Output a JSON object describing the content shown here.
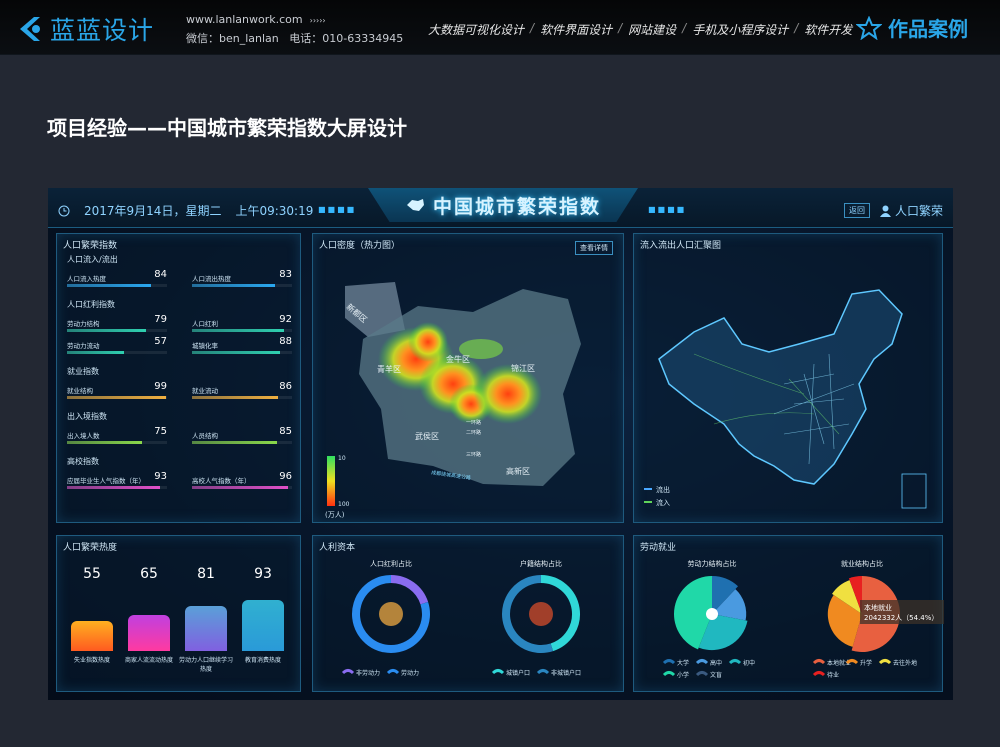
{
  "header": {
    "brand": "蓝蓝设计",
    "website": "www.lanlanwork.com",
    "dots": "›››››",
    "wechat": "微信：ben_lanlan",
    "phone": "电话：010-63334945",
    "nav": [
      "大数据可视化设计",
      "软件界面设计",
      "网站建设",
      "手机及小程序设计",
      "软件开发"
    ],
    "separator": "/",
    "cases": "作品案例"
  },
  "page_title": "项目经验——中国城市繁荣指数大屏设计",
  "dashboard": {
    "date": "2017年9月14日，星期二",
    "time": "上午09:30:19",
    "title": "中国城市繁荣指数",
    "back": "返回",
    "user": "人口繁荣",
    "index_panel": {
      "title": "人口繁荣指数",
      "groups": [
        {
          "name": "人口流入/流出",
          "color": "#2aa8f0",
          "items": [
            {
              "label": "人口流入热度",
              "value": 84
            },
            {
              "label": "人口流出热度",
              "value": 83
            }
          ]
        },
        {
          "name": "人口红利指数",
          "color": "#2fd0b0",
          "items": [
            {
              "label": "劳动力结构",
              "value": 79
            },
            {
              "label": "人口红利",
              "value": 92
            },
            {
              "label": "劳动力流动",
              "value": 57
            },
            {
              "label": "城镇化率",
              "value": 88
            }
          ]
        },
        {
          "name": "就业指数",
          "color": "#f0b040",
          "items": [
            {
              "label": "就业结构",
              "value": 99
            },
            {
              "label": "就业流动",
              "value": 86
            }
          ]
        },
        {
          "name": "出入境指数",
          "color": "#8ad84a",
          "items": [
            {
              "label": "出入境人数",
              "value": 75
            },
            {
              "label": "人员结构",
              "value": 85
            }
          ]
        },
        {
          "name": "高校指数",
          "color": "#e050c8",
          "items": [
            {
              "label": "应届毕业生人气指数（年）",
              "value": 93
            },
            {
              "label": "高校人气指数（年）",
              "value": 96
            }
          ]
        }
      ]
    },
    "heatmap_panel": {
      "title": "人口密度（热力图）",
      "detail": "查看详情",
      "districts": [
        "新都区",
        "金牛区",
        "青羊区",
        "锦江区",
        "武侯区",
        "高新区",
        "一环路",
        "二环路",
        "三环路"
      ],
      "road": "成都绕城高速公路",
      "scale_min": "10",
      "scale_max": "100",
      "unit": "(万人)"
    },
    "map_panel": {
      "title": "流入流出人口汇聚图",
      "legend": [
        {
          "label": "流出",
          "color": "#4aa8ff"
        },
        {
          "label": "流入",
          "color": "#5fd35a"
        }
      ]
    },
    "heat_panel": {
      "title": "人口繁荣热度",
      "cards": [
        {
          "value": 55,
          "label": "失业指数热度",
          "colors": [
            "#ff5a20",
            "#ffb020"
          ]
        },
        {
          "value": 65,
          "label": "商家人流流动热度",
          "colors": [
            "#ff3aa0",
            "#c040e0"
          ]
        },
        {
          "value": 81,
          "label": "劳动力人口继续学习热度",
          "colors": [
            "#8060e0",
            "#5aa0d8"
          ]
        },
        {
          "value": 93,
          "label": "教育消费热度",
          "colors": [
            "#2a9ad8",
            "#30b0d0"
          ]
        }
      ]
    },
    "capital_panel": {
      "title": "人利资本",
      "charts": [
        {
          "title": "人口红利占比",
          "slices": [
            {
              "label": "非劳动力",
              "value": 20,
              "color": "#8a6cf0"
            },
            {
              "label": "劳动力",
              "value": 80,
              "color": "#2a8cf0"
            }
          ]
        },
        {
          "title": "户籍结构占比",
          "slices": [
            {
              "label": "城镇户口",
              "value": 45,
              "color": "#30d8d8"
            },
            {
              "label": "非城镇户口",
              "value": 55,
              "color": "#2a86c0"
            }
          ]
        }
      ]
    },
    "labor_panel": {
      "title": "劳动就业",
      "charts": [
        {
          "title": "劳动力结构占比",
          "slices": [
            {
              "label": "大学",
              "value": 12,
              "color": "#1f70b0"
            },
            {
              "label": "高中",
              "value": 16,
              "color": "#4a9ae0"
            },
            {
              "label": "初中",
              "value": 28,
              "color": "#20b8c0"
            },
            {
              "label": "小学",
              "value": 44,
              "color": "#20d8a8"
            },
            {
              "label": "文盲",
              "value": 0,
              "color": "#3a5a80"
            }
          ]
        },
        {
          "title": "就业结构占比",
          "slices": [
            {
              "label": "本地就业",
              "value": 54.4,
              "color": "#e86040"
            },
            {
              "label": "升学",
              "value": 30,
              "color": "#f08a20"
            },
            {
              "label": "去往外地",
              "value": 10,
              "color": "#f0e040"
            },
            {
              "label": "待业",
              "value": 5.6,
              "color": "#e82020"
            }
          ],
          "tooltip_title": "本地就业",
          "tooltip_value": "2042332人（54.4%）"
        }
      ]
    }
  }
}
